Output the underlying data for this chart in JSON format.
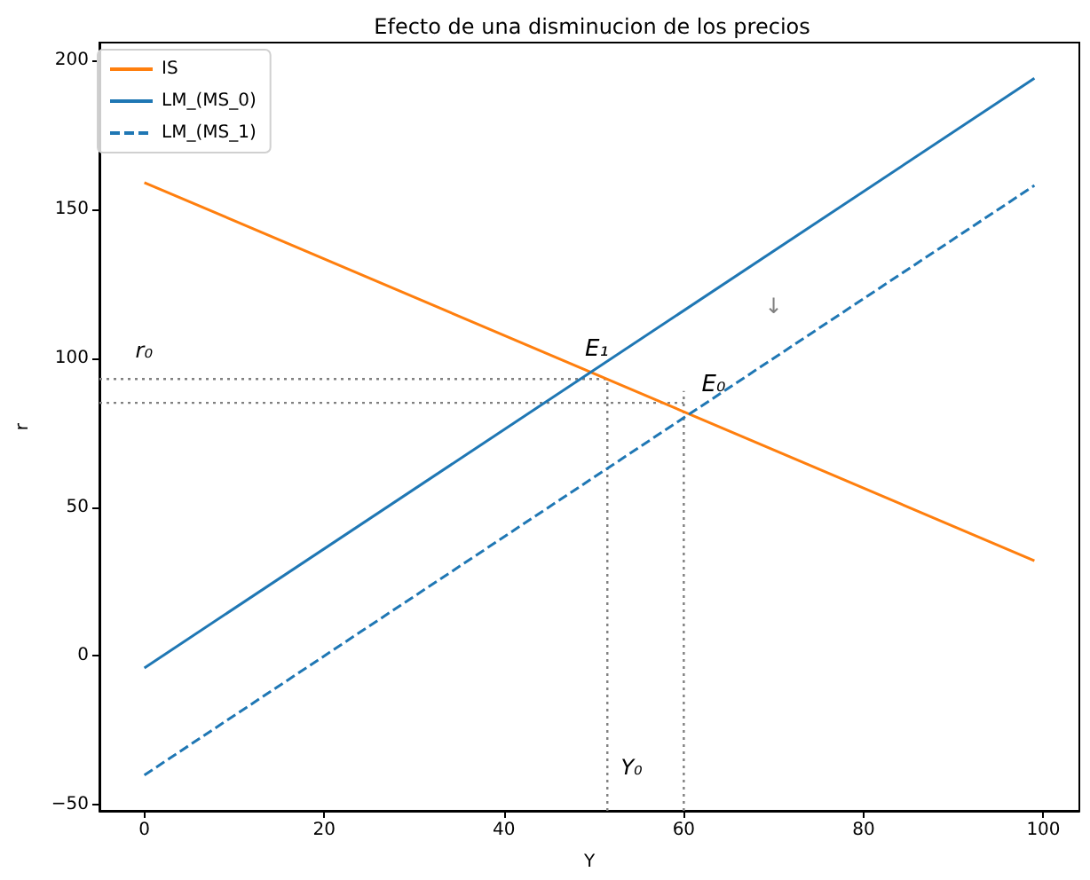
{
  "chart_data": {
    "type": "line",
    "title": "Efecto de una disminucion de los precios",
    "xlabel": "Y",
    "ylabel": "r",
    "xlim": [
      -5,
      104
    ],
    "xticks": [
      0,
      20,
      40,
      60,
      80,
      100
    ],
    "ylim": [
      -52,
      206
    ],
    "yticks": [
      -50,
      0,
      50,
      100,
      150,
      200
    ],
    "grid": false,
    "legend": "top left",
    "marker": "none",
    "series": [
      {
        "name": "IS",
        "color": "#ff7f0e",
        "line_style": "solid",
        "x": [
          0,
          99
        ],
        "values": [
          159,
          32
        ]
      },
      {
        "name": "LM_(MS_0)",
        "color": "#1f77b4",
        "line_style": "solid",
        "x": [
          0,
          99
        ],
        "values": [
          -4,
          194
        ]
      },
      {
        "name": "LM_(MS_1)",
        "color": "#1f77b4",
        "line_style": "dashed",
        "x": [
          0,
          99
        ],
        "values": [
          -40,
          158
        ]
      },
      {
        "color": "#808080",
        "line_style": "dotted",
        "x": [
          -5,
          51.5
        ],
        "values": [
          93,
          93
        ]
      },
      {
        "color": "#808080",
        "line_style": "dotted",
        "x": [
          -5,
          60
        ],
        "values": [
          85,
          85
        ]
      },
      {
        "color": "#808080",
        "line_style": "dotted",
        "x": [
          51.5,
          51.5
        ],
        "values": [
          -52,
          93
        ]
      },
      {
        "color": "#808080",
        "line_style": "dotted",
        "x": [
          60,
          60
        ],
        "values": [
          -52,
          89
        ]
      }
    ],
    "annotations": [
      "r₀",
      {
        "text": "E₁",
        "x": 49,
        "y": 99
      },
      {
        "text": "E₀",
        "x": 62,
        "y": 87
      },
      "Y₀",
      "↓"
    ]
  }
}
